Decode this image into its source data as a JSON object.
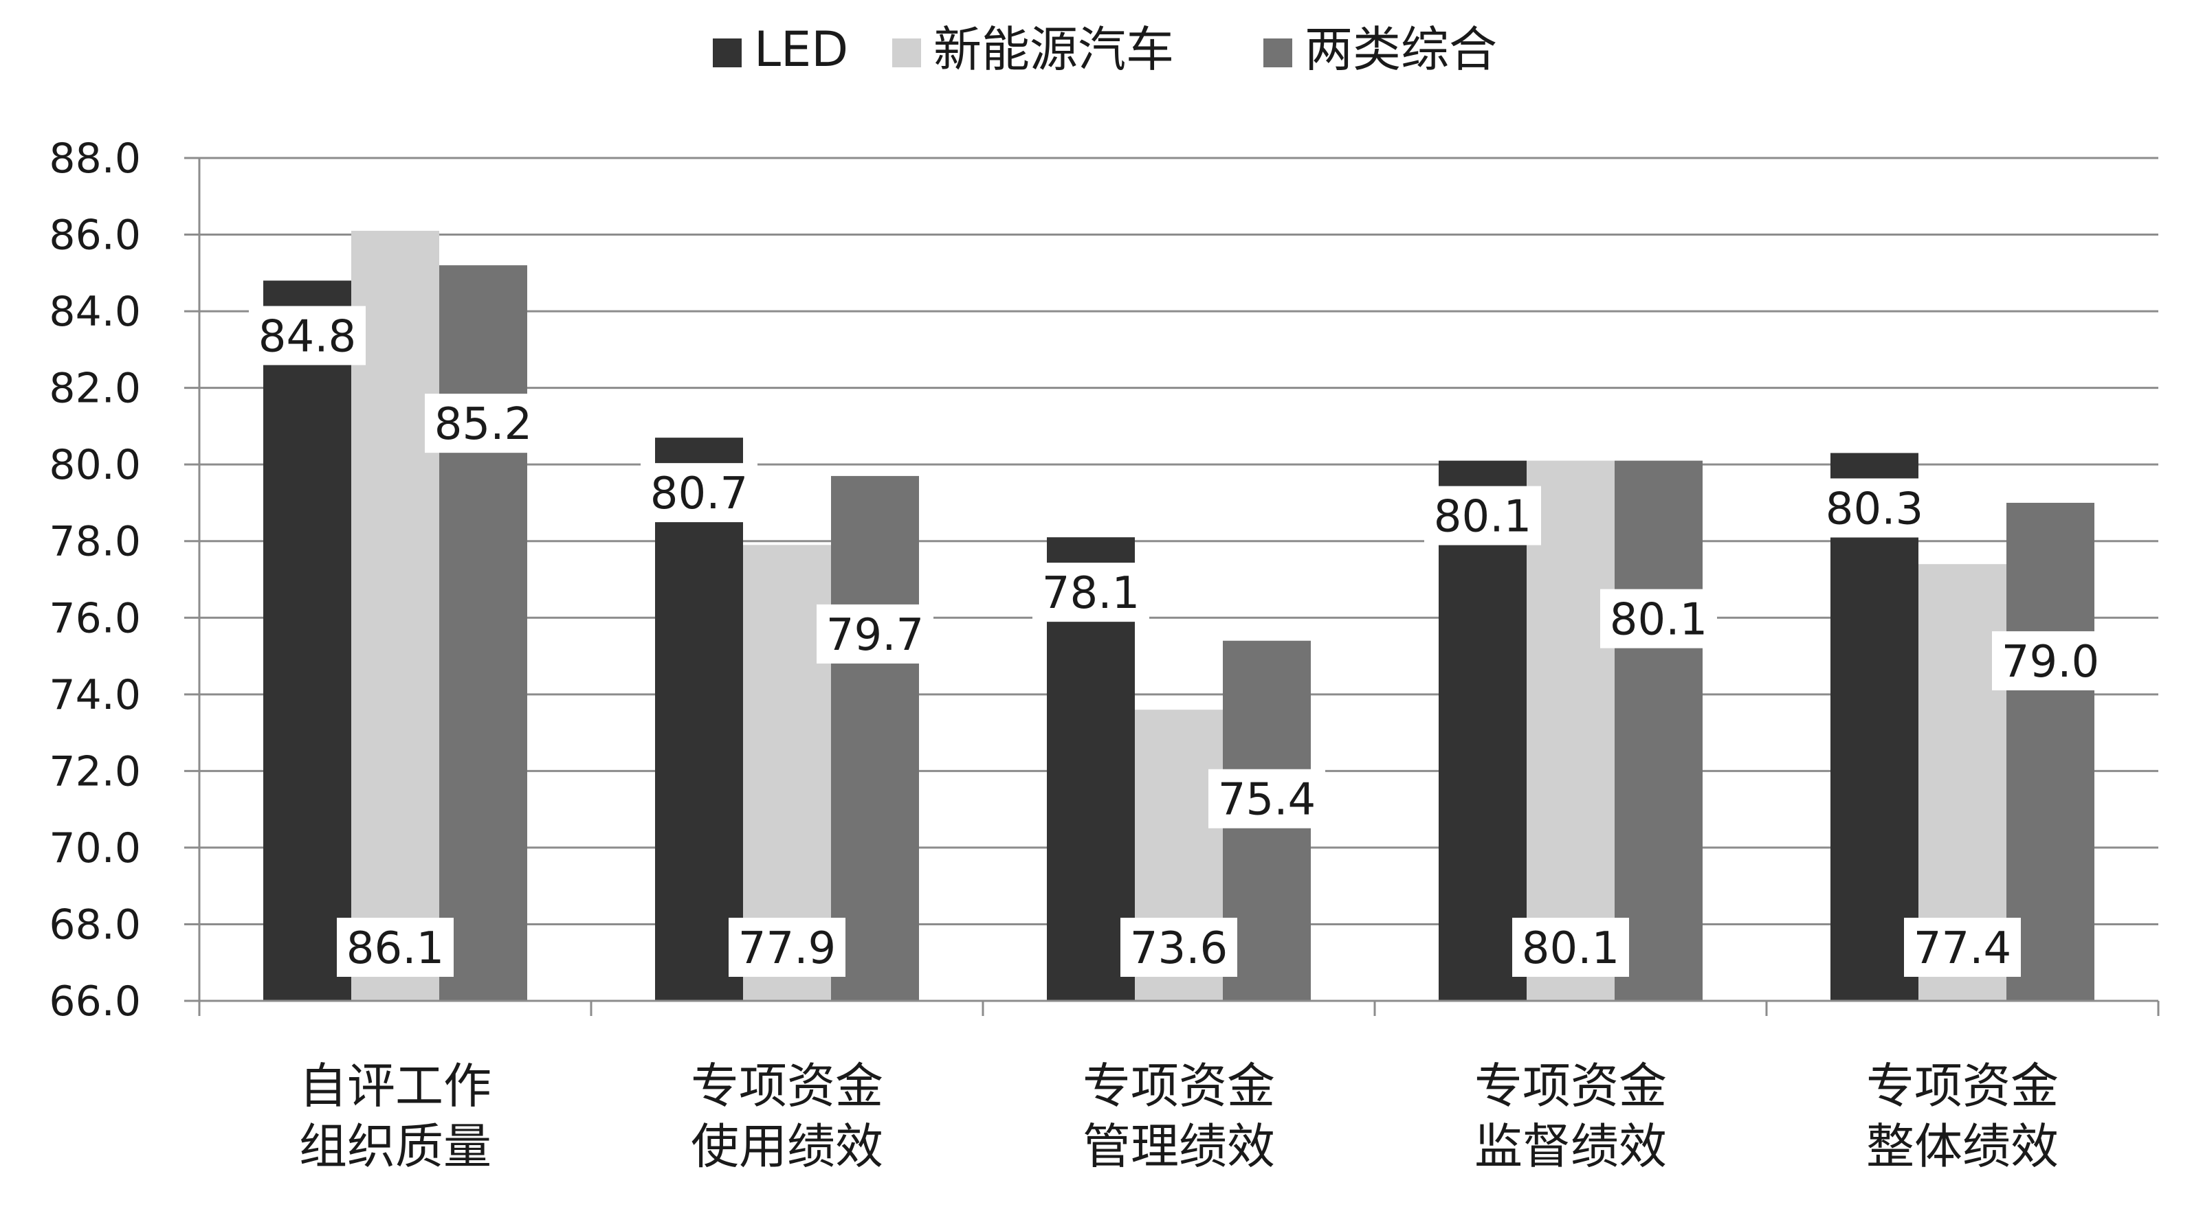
{
  "chart_data": {
    "type": "bar",
    "title": "",
    "xlabel": "",
    "ylabel": "",
    "categories": [
      [
        "自评工作",
        "组织质量"
      ],
      [
        "专项资金",
        "使用绩效"
      ],
      [
        "专项资金",
        "管理绩效"
      ],
      [
        "专项资金",
        "监督绩效"
      ],
      [
        "专项资金",
        "整体绩效"
      ]
    ],
    "series": [
      {
        "name": "LED",
        "color": "#333333",
        "values": [
          84.8,
          80.7,
          78.1,
          80.1,
          80.3
        ],
        "labels": [
          "84.8",
          "80.7",
          "78.1",
          "80.1",
          "80.3"
        ]
      },
      {
        "name": "新能源汽车",
        "color": "#d0d0d0",
        "values": [
          86.1,
          77.9,
          73.6,
          80.1,
          77.4
        ],
        "labels": [
          "86.1",
          "77.9",
          "73.6",
          "80.1",
          "77.4"
        ]
      },
      {
        "name": "两类综合",
        "color": "#737373",
        "values": [
          85.2,
          79.7,
          75.4,
          80.1,
          79.0
        ],
        "labels": [
          "85.2",
          "79.7",
          "75.4",
          "80.1",
          "79.0"
        ]
      }
    ],
    "ylim": [
      66.0,
      88.0
    ],
    "yticks": [
      "66.0",
      "68.0",
      "70.0",
      "72.0",
      "74.0",
      "76.0",
      "78.0",
      "80.0",
      "82.0",
      "84.0",
      "86.0",
      "88.0"
    ],
    "grid": true,
    "legend_position": "top"
  }
}
